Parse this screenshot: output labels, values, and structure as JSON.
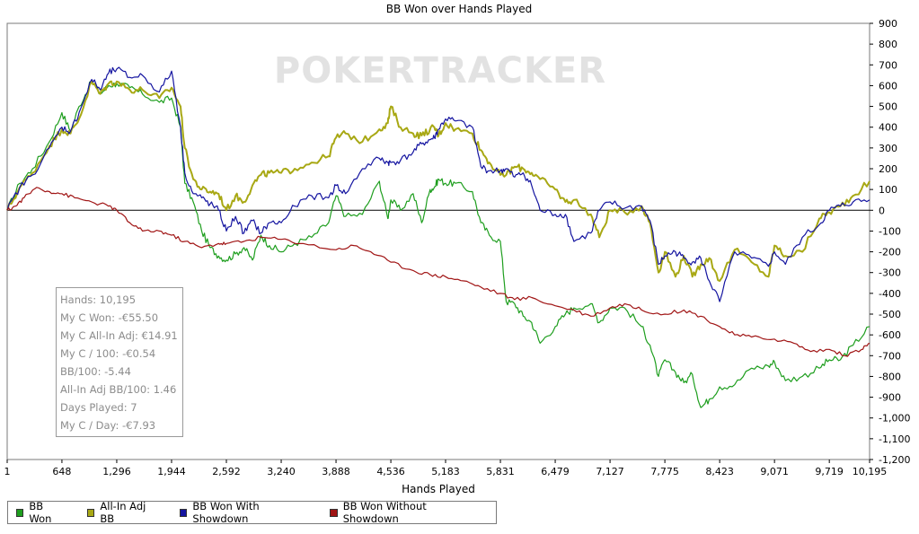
{
  "chart_data": {
    "type": "line",
    "title": "BB Won over Hands Played",
    "xlabel": "Hands Played",
    "ylabel": "",
    "watermark": "POKERTRACKER",
    "xlim": [
      1,
      10195
    ],
    "ylim": [
      -1200,
      900
    ],
    "x_ticks": [
      1,
      648,
      1296,
      1944,
      2592,
      3240,
      3888,
      4536,
      5183,
      5831,
      6479,
      7127,
      7775,
      8423,
      9071,
      9719,
      10195
    ],
    "x_tick_labels": [
      "1",
      "648",
      "1,296",
      "1,944",
      "2,592",
      "3,240",
      "3,888",
      "4,536",
      "5,183",
      "5,831",
      "6,479",
      "7,127",
      "7,775",
      "8,423",
      "9,071",
      "9,719",
      "10,195"
    ],
    "y_ticks": [
      900,
      800,
      700,
      600,
      500,
      400,
      300,
      200,
      100,
      0,
      -100,
      -200,
      -300,
      -400,
      -500,
      -600,
      -700,
      -800,
      -900,
      -1000,
      -1100,
      -1200
    ],
    "y_tick_labels": [
      "900",
      "800",
      "700",
      "600",
      "500",
      "400",
      "300",
      "200",
      "100",
      "0",
      "-100",
      "-200",
      "-300",
      "-400",
      "-500",
      "-600",
      "-700",
      "-800",
      "-900",
      "-1,000",
      "-1,100",
      "-1,200"
    ],
    "legend_position": "bottom-left",
    "series": [
      {
        "name": "BB Won",
        "color": "#1e9e1e",
        "x": [
          1,
          150,
          300,
          500,
          648,
          750,
          850,
          1000,
          1100,
          1200,
          1296,
          1450,
          1600,
          1800,
          1944,
          2050,
          2100,
          2200,
          2300,
          2400,
          2500,
          2592,
          2700,
          2800,
          2900,
          3000,
          3100,
          3240,
          3400,
          3600,
          3800,
          3888,
          4000,
          4200,
          4400,
          4500,
          4536,
          4650,
          4800,
          4900,
          5000,
          5050,
          5100,
          5183,
          5300,
          5500,
          5600,
          5700,
          5831,
          5900,
          6000,
          6100,
          6200,
          6300,
          6479,
          6600,
          6700,
          6900,
          7000,
          7127,
          7300,
          7500,
          7600,
          7700,
          7775,
          7900,
          8000,
          8100,
          8200,
          8300,
          8423,
          8600,
          8800,
          9000,
          9071,
          9200,
          9400,
          9600,
          9719,
          9850,
          10000,
          10195
        ],
        "y": [
          0,
          130,
          200,
          330,
          470,
          380,
          500,
          620,
          560,
          600,
          610,
          590,
          560,
          520,
          540,
          400,
          130,
          40,
          -100,
          -180,
          -220,
          -240,
          -210,
          -180,
          -240,
          -120,
          -170,
          -200,
          -160,
          -130,
          -60,
          70,
          -30,
          -20,
          140,
          -40,
          50,
          0,
          80,
          -60,
          100,
          110,
          150,
          130,
          130,
          90,
          -60,
          -120,
          -150,
          -440,
          -450,
          -510,
          -540,
          -640,
          -560,
          -500,
          -470,
          -450,
          -540,
          -470,
          -470,
          -560,
          -650,
          -800,
          -720,
          -780,
          -830,
          -790,
          -950,
          -910,
          -850,
          -840,
          -760,
          -750,
          -730,
          -820,
          -800,
          -760,
          -720,
          -720,
          -650,
          -560
        ]
      },
      {
        "name": "All-In Adj BB",
        "color": "#a8a814",
        "x": [
          1,
          150,
          300,
          500,
          648,
          750,
          850,
          1000,
          1100,
          1200,
          1296,
          1450,
          1600,
          1800,
          1944,
          2050,
          2100,
          2200,
          2300,
          2400,
          2500,
          2592,
          2700,
          2800,
          2900,
          3000,
          3100,
          3240,
          3400,
          3600,
          3800,
          3888,
          4000,
          4200,
          4400,
          4500,
          4536,
          4650,
          4800,
          4900,
          5000,
          5050,
          5100,
          5183,
          5300,
          5500,
          5600,
          5700,
          5831,
          5900,
          6000,
          6100,
          6200,
          6300,
          6479,
          6600,
          6700,
          6900,
          7000,
          7127,
          7300,
          7500,
          7600,
          7700,
          7775,
          7900,
          8000,
          8100,
          8200,
          8300,
          8423,
          8600,
          8800,
          9000,
          9071,
          9200,
          9400,
          9600,
          9719,
          9850,
          10000,
          10195
        ],
        "y": [
          0,
          110,
          180,
          310,
          390,
          370,
          440,
          620,
          560,
          610,
          620,
          580,
          580,
          540,
          590,
          500,
          300,
          150,
          100,
          90,
          80,
          0,
          70,
          40,
          120,
          170,
          180,
          180,
          200,
          230,
          260,
          350,
          370,
          330,
          390,
          420,
          500,
          400,
          370,
          360,
          390,
          400,
          360,
          420,
          390,
          370,
          290,
          230,
          170,
          170,
          210,
          200,
          180,
          150,
          100,
          40,
          50,
          -20,
          -130,
          0,
          -10,
          20,
          -60,
          -300,
          -200,
          -320,
          -220,
          -320,
          -260,
          -230,
          -340,
          -190,
          -250,
          -320,
          -170,
          -220,
          -200,
          -40,
          -10,
          20,
          70,
          140
        ]
      },
      {
        "name": "BB Won With Showdown",
        "color": "#1414a0",
        "x": [
          1,
          150,
          300,
          500,
          648,
          750,
          850,
          1000,
          1100,
          1200,
          1296,
          1450,
          1600,
          1800,
          1944,
          2050,
          2100,
          2200,
          2300,
          2400,
          2500,
          2592,
          2700,
          2800,
          2900,
          3000,
          3100,
          3240,
          3400,
          3600,
          3800,
          3888,
          4000,
          4200,
          4400,
          4500,
          4536,
          4650,
          4800,
          4900,
          5000,
          5050,
          5100,
          5183,
          5300,
          5500,
          5600,
          5700,
          5831,
          5900,
          6000,
          6100,
          6200,
          6300,
          6479,
          6600,
          6700,
          6900,
          7000,
          7127,
          7300,
          7500,
          7600,
          7700,
          7775,
          7900,
          8000,
          8100,
          8200,
          8300,
          8423,
          8600,
          8800,
          9000,
          9071,
          9200,
          9400,
          9600,
          9719,
          9850,
          10000,
          10195
        ],
        "y": [
          0,
          110,
          170,
          300,
          400,
          380,
          470,
          630,
          580,
          660,
          680,
          640,
          650,
          570,
          670,
          400,
          180,
          80,
          60,
          30,
          0,
          -100,
          -30,
          -110,
          -50,
          -110,
          -60,
          -60,
          20,
          70,
          60,
          120,
          80,
          200,
          250,
          230,
          230,
          240,
          280,
          320,
          340,
          350,
          390,
          440,
          430,
          400,
          210,
          190,
          190,
          200,
          160,
          180,
          120,
          0,
          -20,
          -20,
          -150,
          -110,
          0,
          40,
          10,
          20,
          -50,
          -260,
          -220,
          -200,
          -230,
          -250,
          -230,
          -340,
          -440,
          -200,
          -230,
          -270,
          -200,
          -260,
          -130,
          -70,
          0,
          20,
          40,
          50
        ]
      },
      {
        "name": "BB Won Without Showdown",
        "color": "#a01414",
        "x": [
          1,
          100,
          200,
          350,
          500,
          648,
          800,
          1000,
          1200,
          1296,
          1450,
          1600,
          1800,
          1944,
          2100,
          2300,
          2500,
          2592,
          2800,
          3000,
          3240,
          3500,
          3888,
          4100,
          4300,
          4536,
          4800,
          5000,
          5183,
          5400,
          5600,
          5831,
          6000,
          6200,
          6479,
          6700,
          6900,
          7127,
          7300,
          7500,
          7775,
          8000,
          8200,
          8423,
          8600,
          8800,
          9071,
          9300,
          9500,
          9719,
          9900,
          10100,
          10195
        ],
        "y": [
          0,
          20,
          60,
          110,
          90,
          80,
          60,
          40,
          20,
          0,
          -60,
          -100,
          -100,
          -120,
          -150,
          -180,
          -160,
          -160,
          -150,
          -130,
          -140,
          -160,
          -190,
          -170,
          -200,
          -250,
          -290,
          -310,
          -320,
          -340,
          -370,
          -400,
          -430,
          -420,
          -460,
          -480,
          -510,
          -470,
          -450,
          -480,
          -500,
          -480,
          -510,
          -560,
          -600,
          -610,
          -620,
          -640,
          -680,
          -670,
          -700,
          -670,
          -640
        ]
      }
    ]
  },
  "stats": [
    "Hands: 10,195",
    "My C Won: -€55.50",
    "My C All-In Adj: €14.91",
    "My C / 100: -€0.54",
    "BB/100: -5.44",
    "All-In Adj BB/100: 1.46",
    "Days Played: 7",
    "My C / Day: -€7.93"
  ]
}
